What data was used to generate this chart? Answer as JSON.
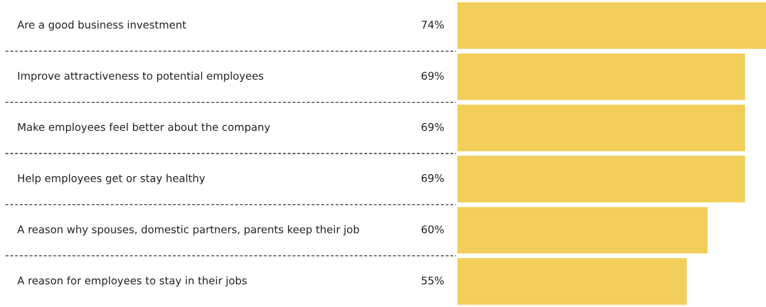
{
  "chart_data": {
    "type": "bar",
    "orientation": "horizontal",
    "categories": [
      "Are a good business investment",
      "Improve attractiveness to potential employees",
      "Make employees feel better about the company",
      "Help employees get or stay healthy",
      "A reason why spouses, domestic partners, parents keep their job",
      "A reason for employees to stay in their jobs"
    ],
    "values": [
      74,
      69,
      69,
      69,
      60,
      55
    ],
    "value_labels": [
      "74%",
      "69%",
      "69%",
      "69%",
      "60%",
      "55%"
    ],
    "color": "#f2cf5b"
  }
}
